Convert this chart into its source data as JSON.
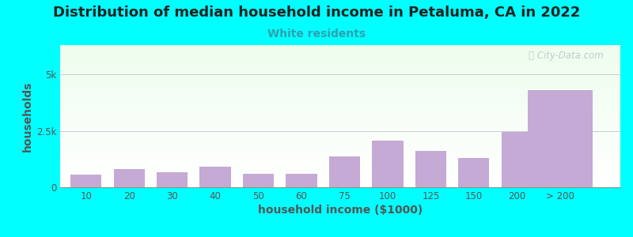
{
  "title": "Distribution of median household income in Petaluma, CA in 2022",
  "subtitle": "White residents",
  "xlabel": "household income ($1000)",
  "ylabel": "households",
  "background_color": "#00FFFF",
  "bar_color": "#c4aad4",
  "bar_edgecolor": "none",
  "categories": [
    "10",
    "20",
    "30",
    "40",
    "50",
    "60",
    "75",
    "100",
    "125",
    "150",
    "200",
    "> 200"
  ],
  "values": [
    550,
    800,
    680,
    900,
    580,
    600,
    1350,
    2050,
    1600,
    1300,
    2450,
    4300
  ],
  "ylim": [
    0,
    6300
  ],
  "ytick_vals": [
    0,
    2500,
    5000
  ],
  "ytick_labels": [
    "0",
    "2.5k",
    "5k"
  ],
  "title_fontsize": 13,
  "subtitle_fontsize": 10,
  "subtitle_color": "#30a0b0",
  "axis_label_fontsize": 10,
  "tick_fontsize": 8.5,
  "watermark_text": "City-Data.com",
  "watermark_color": "#b8c4cc",
  "grid_color": "#cccccc",
  "axis_color": "#909090",
  "label_color": "#555555",
  "title_color": "#222222"
}
